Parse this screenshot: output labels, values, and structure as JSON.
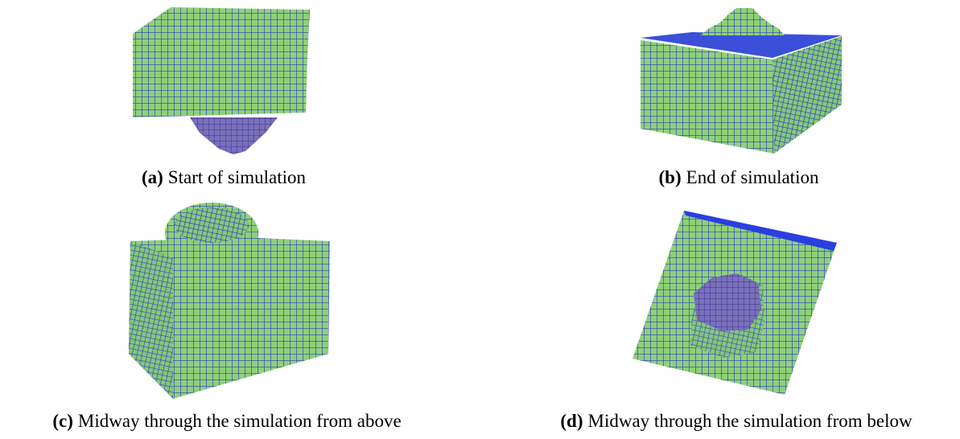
{
  "figures": [
    {
      "label": "(a)",
      "caption": "Start of simulation"
    },
    {
      "label": "(b)",
      "caption": "End of simulation"
    },
    {
      "label": "(c)",
      "caption": "Midway through the simulation from above"
    },
    {
      "label": "(d)",
      "caption": "Midway through the simulation from below"
    }
  ]
}
